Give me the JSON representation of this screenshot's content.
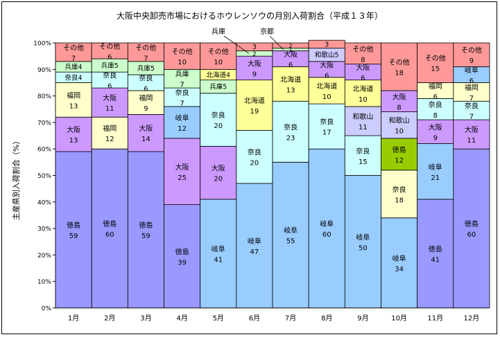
{
  "chart_data": {
    "type": "bar",
    "stacked": true,
    "title": "大阪中央卸売市場におけるホウレンソウの月別入荷割合（平成１３年）",
    "ylabel": "主産県別入荷割合（%）",
    "ylim": [
      0,
      100
    ],
    "yticks": [
      "0%",
      "10%",
      "20%",
      "30%",
      "40%",
      "50%",
      "60%",
      "70%",
      "80%",
      "90%",
      "100%"
    ],
    "categories": [
      "1月",
      "2月",
      "3月",
      "4月",
      "5月",
      "6月",
      "7月",
      "8月",
      "9月",
      "10月",
      "11月",
      "12月"
    ],
    "grid": false,
    "legend": "none",
    "colors": {
      "徳島": "#9999ff",
      "岐阜": "#99ccff",
      "大阪": "#cc99ff",
      "福岡": "#ffffcc",
      "奈良": "#ccffff",
      "兵庫": "#ccffcc",
      "北海道": "#ffff99",
      "和歌山": "#ccccff",
      "京都": "#ccffcc",
      "その他": "#ff9999",
      "奈良_oct": "#ffffcc",
      "徳島_oct": "#99cc00"
    },
    "stacks": [
      [
        {
          "name": "徳島",
          "value": 59
        },
        {
          "name": "大阪",
          "value": 13
        },
        {
          "name": "福岡",
          "value": 13
        },
        {
          "name": "奈良",
          "value": 4
        },
        {
          "name": "兵庫",
          "value": 4
        },
        {
          "name": "その他",
          "value": 7
        }
      ],
      [
        {
          "name": "徳島",
          "value": 60
        },
        {
          "name": "福岡",
          "value": 12
        },
        {
          "name": "大阪",
          "value": 11
        },
        {
          "name": "奈良",
          "value": 6
        },
        {
          "name": "兵庫",
          "value": 5
        },
        {
          "name": "その他",
          "value": 6
        }
      ],
      [
        {
          "name": "徳島",
          "value": 59
        },
        {
          "name": "大阪",
          "value": 14
        },
        {
          "name": "福岡",
          "value": 9
        },
        {
          "name": "奈良",
          "value": 6
        },
        {
          "name": "兵庫",
          "value": 5
        },
        {
          "name": "その他",
          "value": 7
        }
      ],
      [
        {
          "name": "徳島",
          "value": 39
        },
        {
          "name": "大阪",
          "value": 25
        },
        {
          "name": "岐阜",
          "value": 12
        },
        {
          "name": "奈良",
          "value": 7
        },
        {
          "name": "兵庫",
          "value": 7
        },
        {
          "name": "その他",
          "value": 10
        }
      ],
      [
        {
          "name": "岐阜",
          "value": 41
        },
        {
          "name": "大阪",
          "value": 20
        },
        {
          "name": "奈良",
          "value": 20
        },
        {
          "name": "兵庫",
          "value": 5
        },
        {
          "name": "北海道",
          "value": 4
        },
        {
          "name": "その他",
          "value": 10
        }
      ],
      [
        {
          "name": "岐阜",
          "value": 47
        },
        {
          "name": "奈良",
          "value": 20
        },
        {
          "name": "北海道",
          "value": 19
        },
        {
          "name": "大阪",
          "value": 9
        },
        {
          "name": "兵庫",
          "value": 2
        },
        {
          "name": "その他",
          "value": 3
        }
      ],
      [
        {
          "name": "岐阜",
          "value": 55
        },
        {
          "name": "奈良",
          "value": 23
        },
        {
          "name": "北海道",
          "value": 13
        },
        {
          "name": "大阪",
          "value": 6
        },
        {
          "name": "京都",
          "value": 1
        },
        {
          "name": "その他",
          "value": 2
        }
      ],
      [
        {
          "name": "岐阜",
          "value": 60
        },
        {
          "name": "奈良",
          "value": 17
        },
        {
          "name": "北海道",
          "value": 10
        },
        {
          "name": "大阪",
          "value": 6
        },
        {
          "name": "和歌山",
          "value": 5
        },
        {
          "name": "その他",
          "value": 3
        }
      ],
      [
        {
          "name": "岐阜",
          "value": 50
        },
        {
          "name": "奈良",
          "value": 15
        },
        {
          "name": "和歌山",
          "value": 11
        },
        {
          "name": "北海道",
          "value": 10
        },
        {
          "name": "大阪",
          "value": 6
        },
        {
          "name": "その他",
          "value": 8
        }
      ],
      [
        {
          "name": "岐阜",
          "value": 34
        },
        {
          "name": "奈良",
          "value": 18,
          "color_key": "奈良_oct"
        },
        {
          "name": "徳島",
          "value": 12,
          "color_key": "徳島_oct"
        },
        {
          "name": "和歌山",
          "value": 10
        },
        {
          "name": "大阪",
          "value": 8
        },
        {
          "name": "その他",
          "value": 18
        }
      ],
      [
        {
          "name": "徳島",
          "value": 41
        },
        {
          "name": "岐阜",
          "value": 21
        },
        {
          "name": "大阪",
          "value": 9
        },
        {
          "name": "奈良",
          "value": 8
        },
        {
          "name": "福岡",
          "value": 6
        },
        {
          "name": "その他",
          "value": 15
        }
      ],
      [
        {
          "name": "徳島",
          "value": 60
        },
        {
          "name": "大阪",
          "value": 11
        },
        {
          "name": "奈良",
          "value": 7
        },
        {
          "name": "福岡",
          "value": 7
        },
        {
          "name": "岐阜",
          "value": 6
        },
        {
          "name": "その他",
          "value": 9
        }
      ]
    ],
    "callouts": [
      {
        "label": "兵庫",
        "month_index": 5,
        "segment_name": "兵庫"
      },
      {
        "label": "京都",
        "month_index": 6,
        "segment_name": "京都"
      }
    ]
  }
}
